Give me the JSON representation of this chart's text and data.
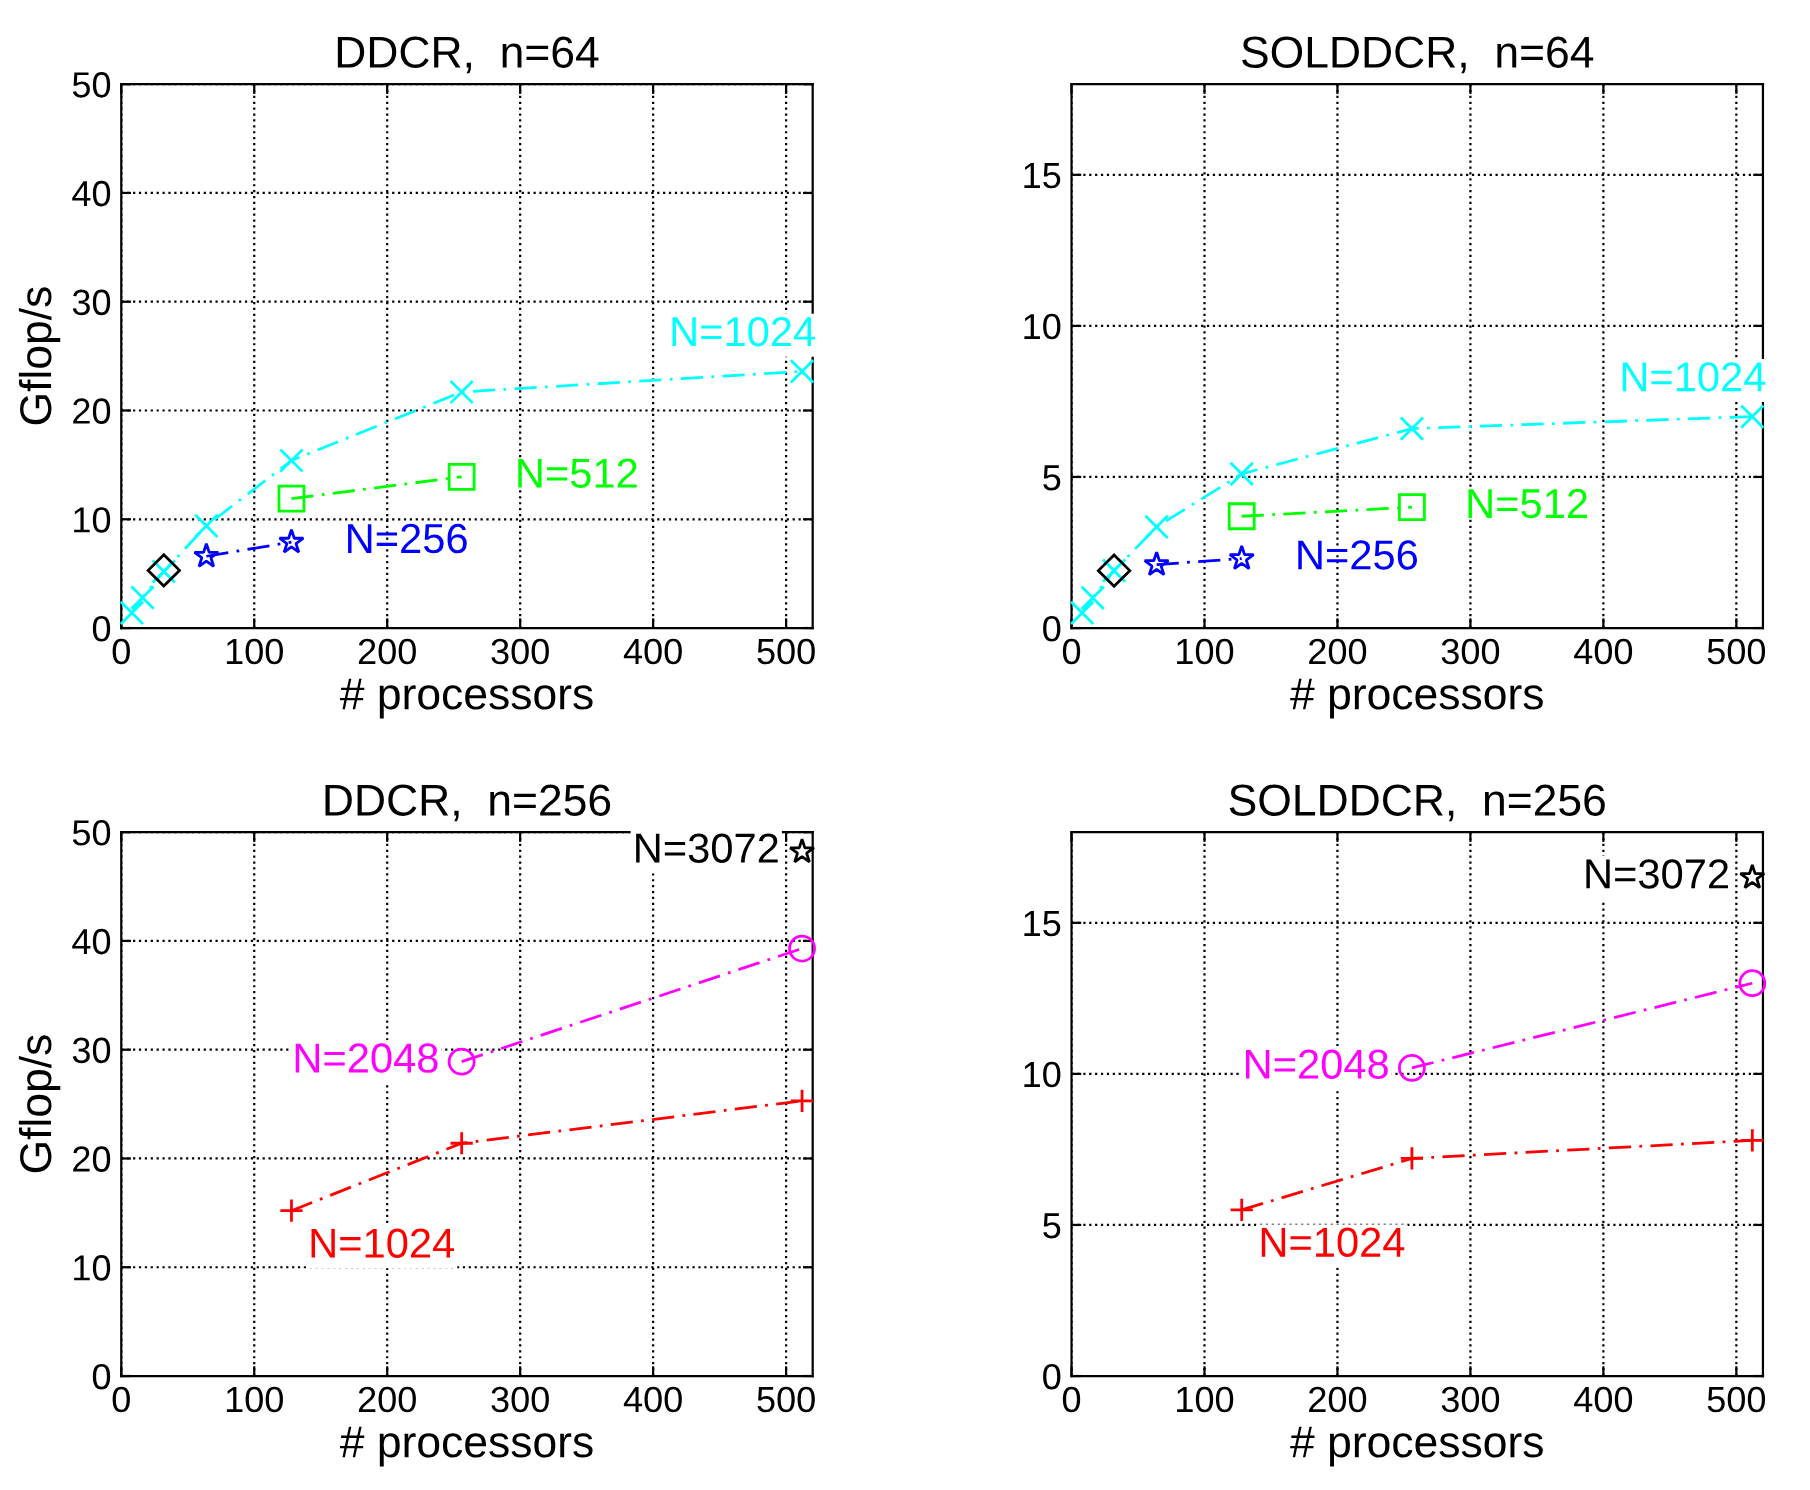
{
  "chart_data": [
    {
      "type": "line",
      "title": "DDCR,  n=64",
      "xlabel": "# processors",
      "ylabel": "Gflop/s",
      "xlim": [
        0,
        520
      ],
      "ylim": [
        0,
        50
      ],
      "xticks": [
        0,
        100,
        200,
        300,
        400,
        500
      ],
      "yticks": [
        0,
        10,
        20,
        30,
        40,
        50
      ],
      "grid": true,
      "line_style": "dashed",
      "series": [
        {
          "name": "N=1024",
          "color": "#00ffff",
          "marker": "cross",
          "x": [
            8,
            16,
            32,
            64,
            128,
            256,
            512
          ],
          "values": [
            1.4,
            2.8,
            5.2,
            9.4,
            15.4,
            21.7,
            23.6
          ]
        },
        {
          "name": "N=512",
          "color": "#00ff00",
          "marker": "square",
          "x": [
            128,
            256
          ],
          "values": [
            11.9,
            13.9
          ]
        },
        {
          "name": "N=256",
          "color": "#0000ff",
          "marker": "star",
          "x": [
            64,
            128
          ],
          "values": [
            6.6,
            7.9
          ]
        },
        {
          "color": "#000000",
          "marker": "diamond",
          "x": [
            32
          ],
          "values": [
            5.3
          ]
        }
      ]
    },
    {
      "type": "line",
      "title": "SOLDDCR,  n=64",
      "xlabel": "# processors",
      "xlim": [
        0,
        520
      ],
      "ylim": [
        0,
        18
      ],
      "xticks": [
        0,
        100,
        200,
        300,
        400,
        500
      ],
      "yticks": [
        0,
        5,
        10,
        15
      ],
      "grid": true,
      "line_style": "dashed",
      "series": [
        {
          "name": "N=1024",
          "color": "#00ffff",
          "marker": "cross",
          "x": [
            8,
            16,
            32,
            64,
            128,
            256,
            512
          ],
          "values": [
            0.5,
            1.0,
            1.9,
            3.35,
            5.1,
            6.6,
            7.0
          ]
        },
        {
          "name": "N=512",
          "color": "#00ff00",
          "marker": "square",
          "x": [
            128,
            256
          ],
          "values": [
            3.7,
            4.0
          ]
        },
        {
          "name": "N=256",
          "color": "#0000ff",
          "marker": "star",
          "x": [
            64,
            128
          ],
          "values": [
            2.1,
            2.3
          ]
        },
        {
          "color": "#000000",
          "marker": "diamond",
          "x": [
            32
          ],
          "values": [
            1.9
          ]
        }
      ]
    },
    {
      "type": "line",
      "title": "DDCR,  n=256",
      "xlabel": "# processors",
      "ylabel": "Gflop/s",
      "xlim": [
        0,
        520
      ],
      "ylim": [
        0,
        50
      ],
      "xticks": [
        0,
        100,
        200,
        300,
        400,
        500
      ],
      "yticks": [
        0,
        10,
        20,
        30,
        40,
        50
      ],
      "grid": true,
      "line_style": "dashed",
      "series": [
        {
          "name": "N=1024",
          "color": "#ff0000",
          "marker": "plus",
          "x": [
            128,
            256,
            512
          ],
          "values": [
            15.2,
            21.4,
            25.3
          ]
        },
        {
          "name": "N=2048",
          "color": "#ff00ff",
          "marker": "circle",
          "x": [
            256,
            512
          ],
          "values": [
            28.9,
            39.3
          ]
        },
        {
          "name": "N=3072",
          "color": "#000000",
          "marker": "star",
          "x": [
            512
          ],
          "values": [
            48.2
          ]
        }
      ]
    },
    {
      "type": "line",
      "title": "SOLDDCR,  n=256",
      "xlabel": "# processors",
      "xlim": [
        0,
        520
      ],
      "ylim": [
        0,
        18
      ],
      "xticks": [
        0,
        100,
        200,
        300,
        400,
        500
      ],
      "yticks": [
        0,
        5,
        10,
        15
      ],
      "grid": true,
      "line_style": "dashed",
      "series": [
        {
          "name": "N=1024",
          "color": "#ff0000",
          "marker": "plus",
          "x": [
            128,
            256,
            512
          ],
          "values": [
            5.5,
            7.2,
            7.8
          ]
        },
        {
          "name": "N=2048",
          "color": "#ff00ff",
          "marker": "circle",
          "x": [
            256,
            512
          ],
          "values": [
            10.2,
            13.0
          ]
        },
        {
          "name": "N=3072",
          "color": "#000000",
          "marker": "star",
          "x": [
            512
          ],
          "values": [
            16.5
          ]
        }
      ]
    }
  ]
}
